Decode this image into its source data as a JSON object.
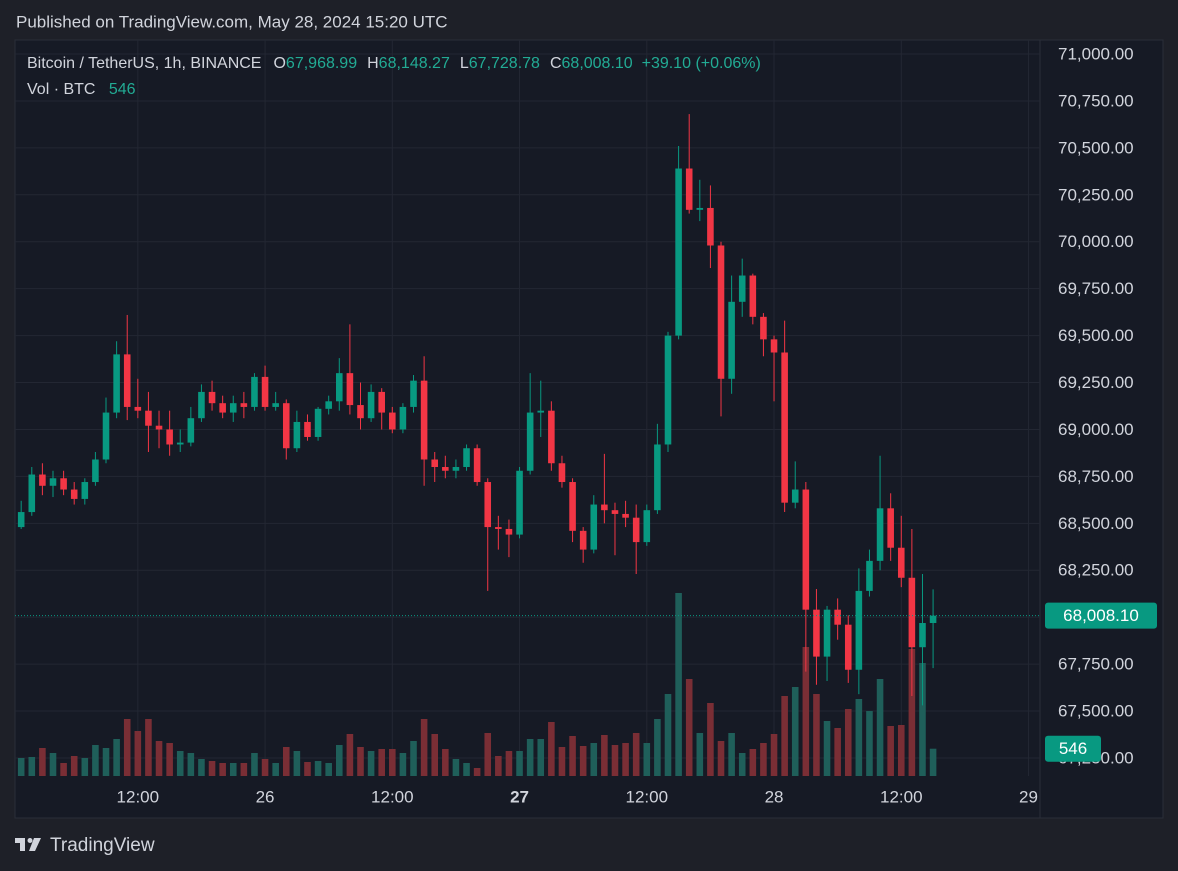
{
  "header": {
    "published": "Published on TradingView.com, May 28, 2024 15:20 UTC",
    "brand": "TradingView"
  },
  "chart_data": {
    "type": "candlestick",
    "legend": {
      "symbol": "Bitcoin / TetherUS, 1h, BINANCE",
      "fields": [
        {
          "key": "O",
          "value": 67968.99,
          "label": "67,968.99"
        },
        {
          "key": "H",
          "value": 68148.27,
          "label": "68,148.27"
        },
        {
          "key": "L",
          "value": 67728.78,
          "label": "67,728.78"
        },
        {
          "key": "C",
          "value": 68008.1,
          "label": "68,008.10"
        }
      ],
      "change": {
        "value": 39.1,
        "label": "+39.10"
      },
      "change_pct": {
        "value": 0.06,
        "label": "(+0.06%)"
      },
      "volume_name": "Vol · BTC",
      "volume": 546
    },
    "last_price": {
      "value": 68008.1,
      "label": "68,008.10"
    },
    "last_volume": 546,
    "up_color": "#089981",
    "down_color": "#f23645",
    "volume_up_color": "#1f5f5a",
    "volume_down_color": "#7a2e35",
    "x": [
      "2024-05-25T01:00",
      "2024-05-25T02:00",
      "2024-05-25T03:00",
      "2024-05-25T04:00",
      "2024-05-25T05:00",
      "2024-05-25T06:00",
      "2024-05-25T07:00",
      "2024-05-25T08:00",
      "2024-05-25T09:00",
      "2024-05-25T10:00",
      "2024-05-25T11:00",
      "2024-05-25T12:00",
      "2024-05-25T13:00",
      "2024-05-25T14:00",
      "2024-05-25T15:00",
      "2024-05-25T16:00",
      "2024-05-25T17:00",
      "2024-05-25T18:00",
      "2024-05-25T19:00",
      "2024-05-25T20:00",
      "2024-05-25T21:00",
      "2024-05-25T22:00",
      "2024-05-25T23:00",
      "2024-05-26T00:00",
      "2024-05-26T01:00",
      "2024-05-26T02:00",
      "2024-05-26T03:00",
      "2024-05-26T04:00",
      "2024-05-26T05:00",
      "2024-05-26T06:00",
      "2024-05-26T07:00",
      "2024-05-26T08:00",
      "2024-05-26T09:00",
      "2024-05-26T10:00",
      "2024-05-26T11:00",
      "2024-05-26T12:00",
      "2024-05-26T13:00",
      "2024-05-26T14:00",
      "2024-05-26T15:00",
      "2024-05-26T16:00",
      "2024-05-26T17:00",
      "2024-05-26T18:00",
      "2024-05-26T19:00",
      "2024-05-26T20:00",
      "2024-05-26T21:00",
      "2024-05-26T22:00",
      "2024-05-26T23:00",
      "2024-05-27T00:00",
      "2024-05-27T01:00",
      "2024-05-27T02:00",
      "2024-05-27T03:00",
      "2024-05-27T04:00",
      "2024-05-27T05:00",
      "2024-05-27T06:00",
      "2024-05-27T07:00",
      "2024-05-27T08:00",
      "2024-05-27T09:00",
      "2024-05-27T10:00",
      "2024-05-27T11:00",
      "2024-05-27T12:00",
      "2024-05-27T13:00",
      "2024-05-27T14:00",
      "2024-05-27T15:00",
      "2024-05-27T16:00",
      "2024-05-27T17:00",
      "2024-05-27T18:00",
      "2024-05-27T19:00",
      "2024-05-27T20:00",
      "2024-05-27T21:00",
      "2024-05-27T22:00",
      "2024-05-27T23:00",
      "2024-05-28T00:00",
      "2024-05-28T01:00",
      "2024-05-28T02:00",
      "2024-05-28T03:00",
      "2024-05-28T04:00",
      "2024-05-28T05:00",
      "2024-05-28T06:00",
      "2024-05-28T07:00",
      "2024-05-28T08:00",
      "2024-05-28T09:00",
      "2024-05-28T10:00",
      "2024-05-28T11:00",
      "2024-05-28T12:00",
      "2024-05-28T13:00",
      "2024-05-28T14:00",
      "2024-05-28T15:00"
    ],
    "open": [
      68480,
      68560,
      68760,
      68700,
      68740,
      68680,
      68630,
      68720,
      68840,
      69090,
      69400,
      69120,
      69100,
      69020,
      69000,
      68920,
      68930,
      69060,
      69200,
      69140,
      69090,
      69140,
      69120,
      69280,
      69120,
      69140,
      68900,
      69040,
      68960,
      69110,
      69150,
      69300,
      69130,
      69060,
      69200,
      69090,
      69000,
      69120,
      69260,
      68840,
      68800,
      68780,
      68800,
      68900,
      68720,
      68480,
      68470,
      68440,
      68780,
      69090,
      69100,
      68820,
      68720,
      68460,
      68360,
      68600,
      68570,
      68550,
      68530,
      68400,
      68570,
      68920,
      69500,
      70390,
      70170,
      70180,
      69980,
      69270,
      69680,
      69820,
      69600,
      69480,
      69410,
      68610,
      68680,
      68040,
      67790,
      68040,
      67960,
      67720,
      68140,
      68300,
      68580,
      68370,
      68210,
      67840,
      67968.99
    ],
    "high": [
      68620,
      68800,
      68820,
      68780,
      68780,
      68720,
      68740,
      68880,
      69170,
      69470,
      69610,
      69270,
      69200,
      69100,
      69100,
      69000,
      69120,
      69240,
      69260,
      69180,
      69180,
      69200,
      69300,
      69340,
      69200,
      69160,
      69100,
      69080,
      69120,
      69180,
      69380,
      69560,
      69250,
      69240,
      69220,
      69120,
      69140,
      69290,
      69390,
      68880,
      68860,
      68840,
      68920,
      68920,
      68740,
      68540,
      68520,
      68800,
      69300,
      69260,
      69150,
      68860,
      68740,
      68480,
      68650,
      68870,
      68610,
      68620,
      68600,
      68600,
      69030,
      69520,
      70510,
      70680,
      70330,
      70300,
      70000,
      69820,
      69910,
      69830,
      69620,
      69500,
      69580,
      68830,
      68720,
      68150,
      68060,
      68100,
      68010,
      68260,
      68360,
      68860,
      68660,
      68540,
      68470,
      68230,
      68148.27
    ],
    "low": [
      68470,
      68540,
      68650,
      68640,
      68650,
      68600,
      68600,
      68700,
      68820,
      69060,
      69050,
      69060,
      68880,
      68900,
      68860,
      68880,
      68910,
      69040,
      69100,
      69060,
      69040,
      69060,
      69100,
      69100,
      69100,
      68840,
      68880,
      68940,
      68940,
      69080,
      69100,
      69080,
      69000,
      69040,
      69000,
      68980,
      68980,
      69090,
      68700,
      68720,
      68740,
      68740,
      68780,
      68700,
      68140,
      68360,
      68320,
      68420,
      68760,
      68960,
      68780,
      68690,
      68400,
      68290,
      68340,
      68500,
      68330,
      68480,
      68230,
      68380,
      68550,
      68880,
      69480,
      70150,
      70110,
      69860,
      69070,
      69190,
      69600,
      69560,
      69390,
      69150,
      68560,
      68580,
      67710,
      67640,
      67660,
      67880,
      67650,
      67590,
      68110,
      68250,
      68300,
      68160,
      67580,
      67530,
      67728.78
    ],
    "close": [
      68560,
      68760,
      68700,
      68740,
      68680,
      68630,
      68720,
      68840,
      69090,
      69400,
      69120,
      69100,
      69020,
      69000,
      68920,
      68930,
      69060,
      69200,
      69140,
      69090,
      69140,
      69120,
      69280,
      69120,
      69140,
      68900,
      69040,
      68960,
      69110,
      69150,
      69300,
      69130,
      69060,
      69200,
      69090,
      69000,
      69120,
      69260,
      68840,
      68800,
      68780,
      68800,
      68900,
      68720,
      68480,
      68470,
      68440,
      68780,
      69090,
      69100,
      68820,
      68720,
      68460,
      68360,
      68600,
      68570,
      68550,
      68530,
      68400,
      68570,
      68920,
      69500,
      70390,
      70170,
      70180,
      69980,
      69270,
      69680,
      69820,
      69600,
      69480,
      69410,
      68610,
      68680,
      68040,
      67790,
      68040,
      67960,
      67720,
      68140,
      68300,
      68580,
      68370,
      68210,
      67840,
      67968.99,
      68008.1
    ],
    "volume": [
      360,
      380,
      560,
      460,
      260,
      400,
      360,
      620,
      560,
      740,
      1140,
      900,
      1140,
      700,
      660,
      500,
      460,
      340,
      300,
      260,
      260,
      260,
      460,
      340,
      260,
      580,
      500,
      280,
      300,
      260,
      620,
      840,
      580,
      500,
      540,
      540,
      460,
      700,
      1140,
      840,
      540,
      340,
      260,
      160,
      860,
      400,
      500,
      500,
      740,
      740,
      1080,
      580,
      800,
      600,
      660,
      820,
      620,
      660,
      860,
      660,
      1140,
      1640,
      3660,
      1940,
      860,
      1460,
      700,
      860,
      460,
      540,
      660,
      840,
      1600,
      1780,
      2580,
      1640,
      1100,
      960,
      1340,
      1540,
      1300,
      1940,
      1000,
      1020,
      2540,
      2260,
      546
    ],
    "xlim": [
      "2024-05-25T00:25",
      "2024-05-29T01:05"
    ],
    "xticks": [
      {
        "value": "2024-05-25T12:00",
        "label": "12:00"
      },
      {
        "value": "2024-05-26T00:00",
        "label": "26"
      },
      {
        "value": "2024-05-26T12:00",
        "label": "12:00"
      },
      {
        "value": "2024-05-27T00:00",
        "label": "27"
      },
      {
        "value": "2024-05-27T12:00",
        "label": "12:00"
      },
      {
        "value": "2024-05-28T00:00",
        "label": "28"
      },
      {
        "value": "2024-05-28T12:00",
        "label": "12:00"
      },
      {
        "value": "2024-05-29T00:00",
        "label": "29"
      }
    ],
    "ylim": [
      67154,
      71064
    ],
    "yticks": [
      {
        "value": 71000,
        "label": "71,000.00"
      },
      {
        "value": 70750,
        "label": "70,750.00"
      },
      {
        "value": 70500,
        "label": "70,500.00"
      },
      {
        "value": 70250,
        "label": "70,250.00"
      },
      {
        "value": 70000,
        "label": "70,000.00"
      },
      {
        "value": 69750,
        "label": "69,750.00"
      },
      {
        "value": 69500,
        "label": "69,500.00"
      },
      {
        "value": 69250,
        "label": "69,250.00"
      },
      {
        "value": 69000,
        "label": "69,000.00"
      },
      {
        "value": 68750,
        "label": "68,750.00"
      },
      {
        "value": 68500,
        "label": "68,500.00"
      },
      {
        "value": 68250,
        "label": "68,250.00"
      },
      {
        "value": 68000,
        "label": "68,000.00"
      },
      {
        "value": 67750,
        "label": "67,750.00"
      },
      {
        "value": 67500,
        "label": "67,500.00"
      },
      {
        "value": 67250,
        "label": "67,250.00"
      }
    ],
    "grid": true
  }
}
